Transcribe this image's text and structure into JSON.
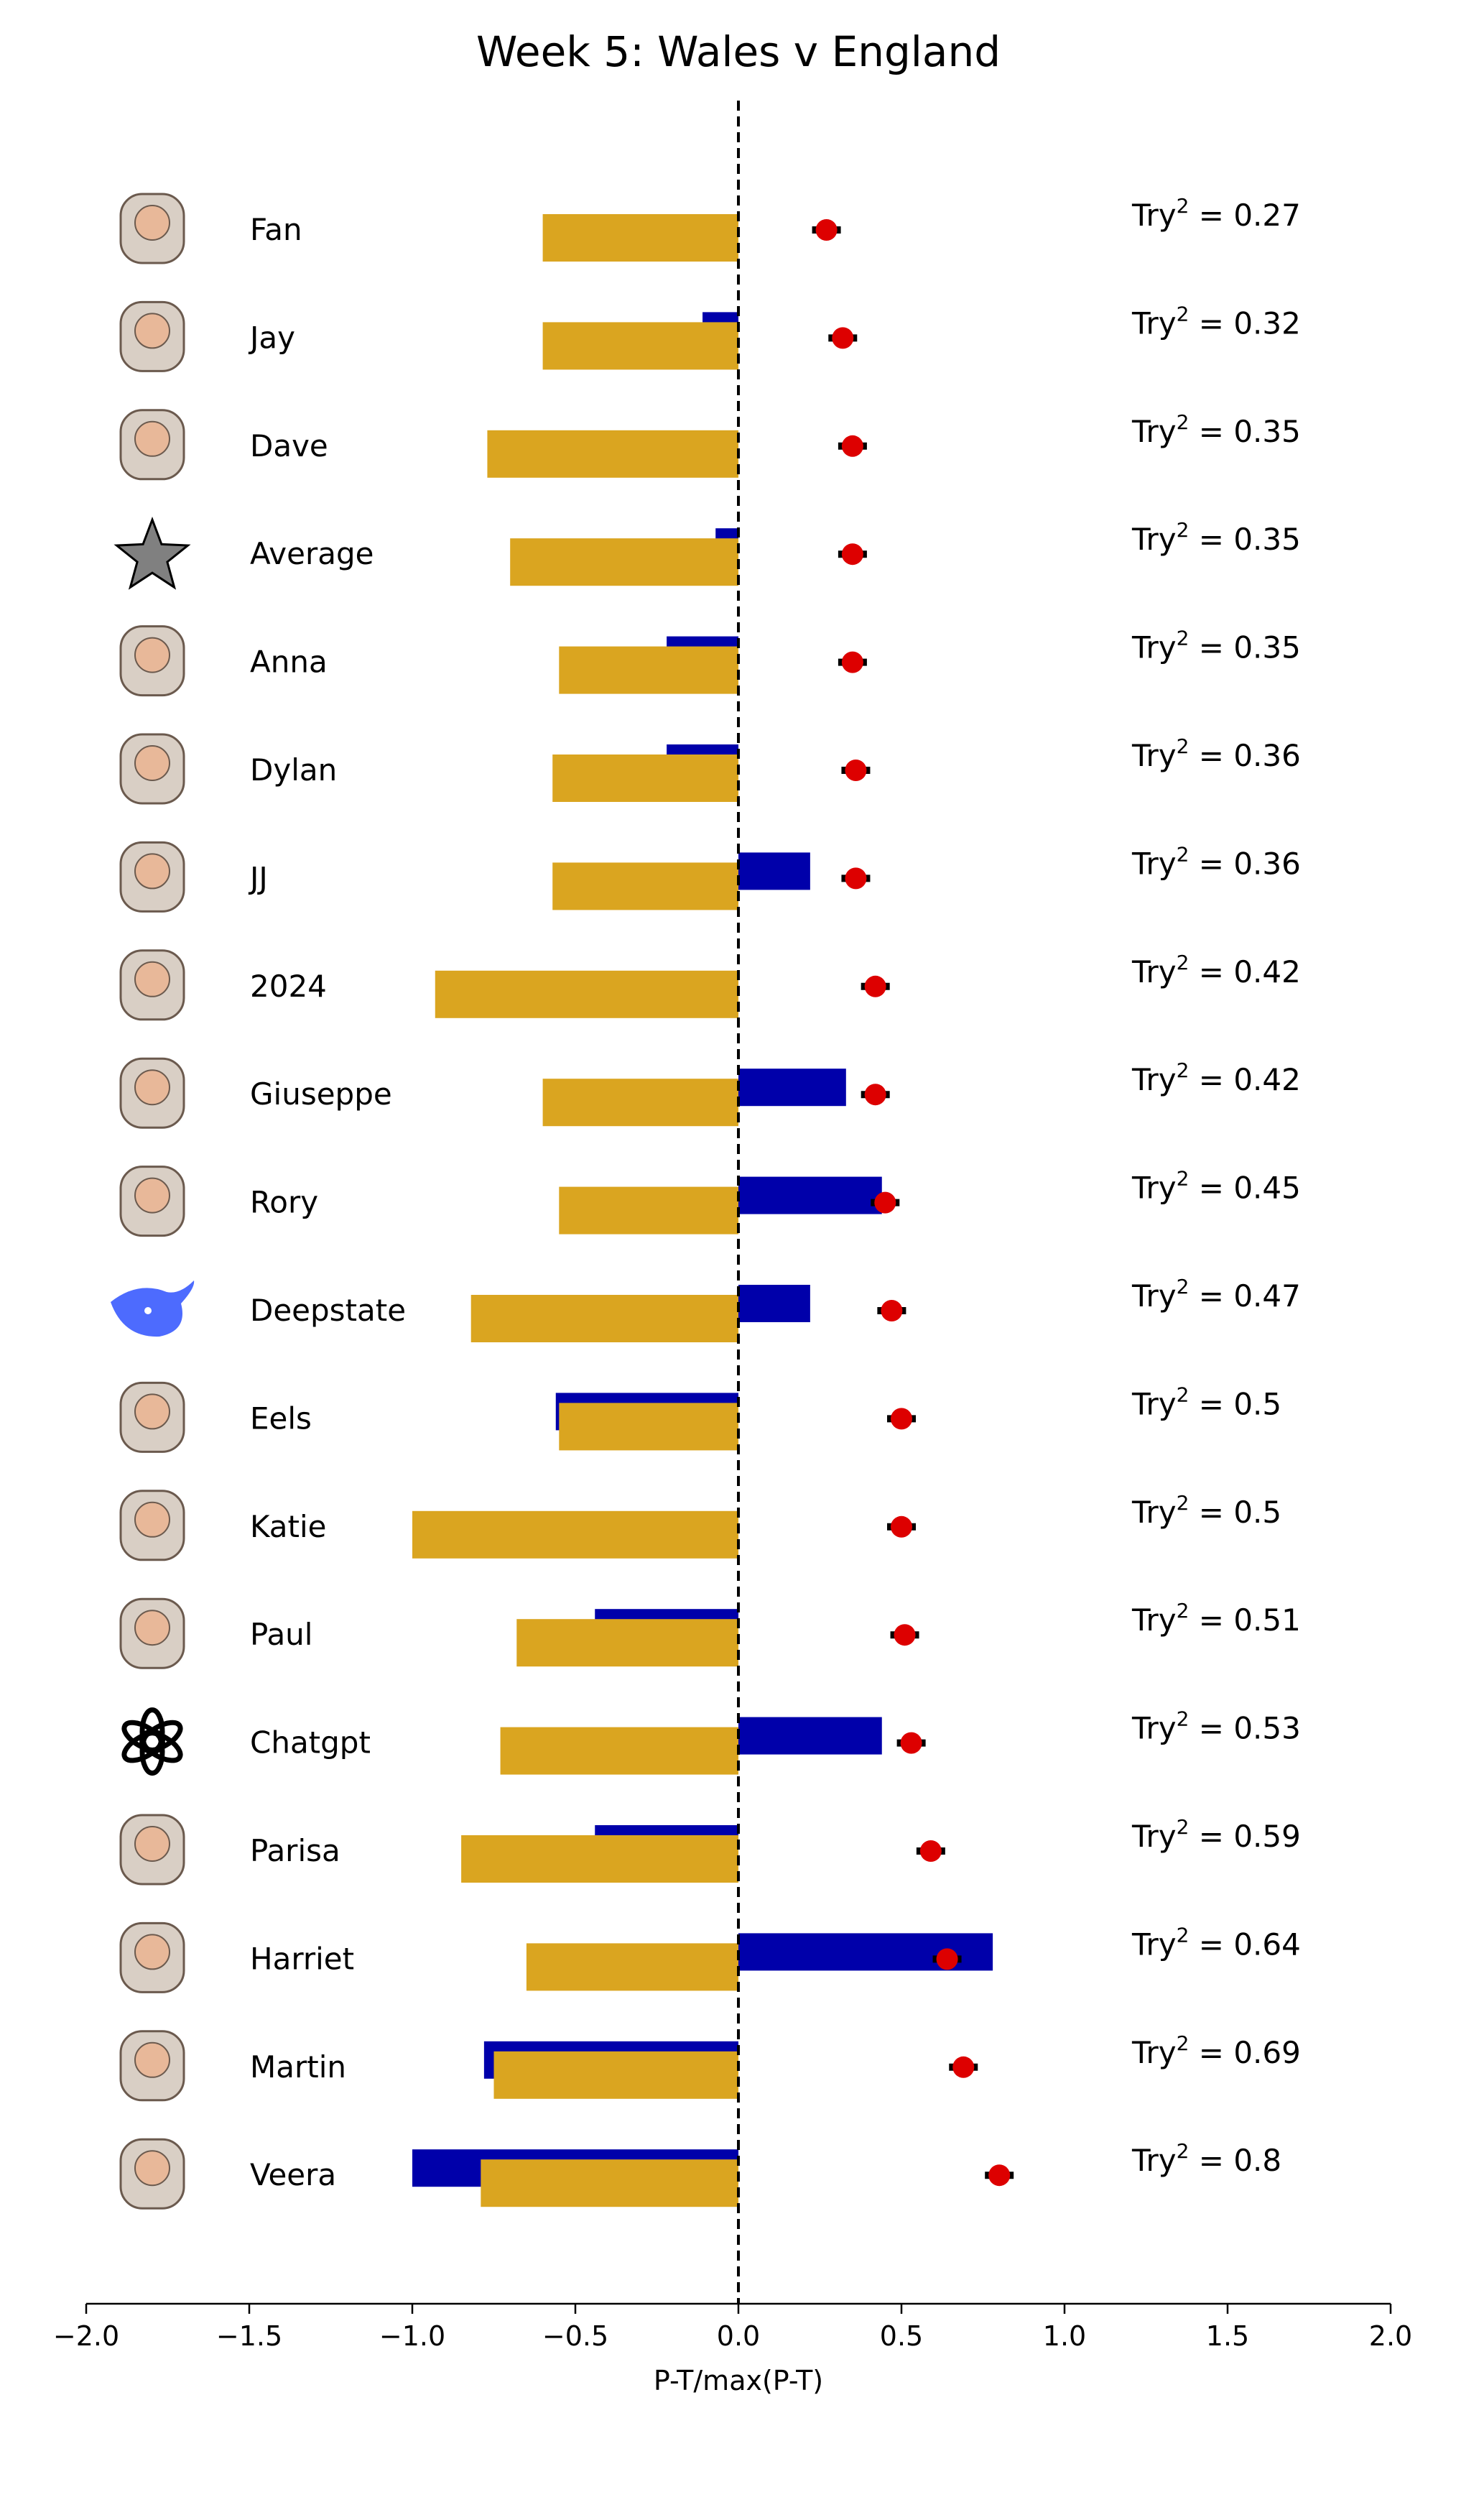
{
  "chart_data": {
    "type": "bar",
    "title": "Week 5: Wales v England",
    "xlabel": "P-T/max(P-T)",
    "ylabel": "",
    "xlim": [
      -2.0,
      2.0
    ],
    "xticks": [
      -2.0,
      -1.5,
      -1.0,
      -0.5,
      0.0,
      0.5,
      1.0,
      1.5,
      2.0
    ],
    "xtick_labels": [
      "−2.0",
      "−1.5",
      "−1.0",
      "−0.5",
      "0.0",
      "0.5",
      "1.0",
      "1.5",
      "2.0"
    ],
    "grid": false,
    "reference_line": {
      "x": 0,
      "style": "dashed",
      "color": "#000000"
    },
    "colors": {
      "blue": "#0000aa",
      "gold": "#daa520",
      "point": "#dd0000"
    },
    "score_label_prefix": "Try",
    "score_label_sup": "2",
    "score_label_sep": " = ",
    "categories": [
      "Fan",
      "Jay",
      "Dave",
      "Average",
      "Anna",
      "Dylan",
      "JJ",
      "2024",
      "Giuseppe",
      "Rory",
      "Deepstate",
      "Eels",
      "Katie",
      "Paul",
      "Chatgpt",
      "Parisa",
      "Harriet",
      "Martin",
      "Veera"
    ],
    "icons": [
      "astronaut-portrait-icon",
      "baby-face-icon",
      "microwave-icon",
      "star-icon",
      "elephant-icon",
      "potato-head-icon",
      "dog-selfie-icon",
      "rugby-ball-2024-icon",
      "bearded-man-icon",
      "truck-icon",
      "whale-logo-icon",
      "eel-icon",
      "pint-glass-icon",
      "fire-extinguisher-icon",
      "chatgpt-logo-icon",
      "dinosaur-icon",
      "woman-portrait-icon",
      "sheep-icon",
      "computer-tower-icon"
    ],
    "series": [
      {
        "values": [
          0.0,
          -0.11,
          0.0,
          -0.07,
          -0.22,
          -0.22,
          0.22,
          0.0,
          0.33,
          0.44,
          0.22,
          -0.56,
          0.0,
          -0.44,
          0.44,
          -0.44,
          0.78,
          -0.78,
          -1.0
        ]
      },
      {
        "values": [
          -0.6,
          -0.6,
          -0.77,
          -0.7,
          -0.55,
          -0.57,
          -0.57,
          -0.93,
          -0.6,
          -0.55,
          -0.82,
          -0.55,
          -1.0,
          -0.68,
          -0.73,
          -0.85,
          -0.65,
          -0.75,
          -0.79
        ]
      },
      {
        "values": [
          0.27,
          0.32,
          0.35,
          0.35,
          0.35,
          0.36,
          0.36,
          0.42,
          0.42,
          0.45,
          0.47,
          0.5,
          0.5,
          0.51,
          0.53,
          0.59,
          0.64,
          0.69,
          0.8
        ]
      }
    ],
    "score_labels": [
      "0.27",
      "0.32",
      "0.35",
      "0.35",
      "0.35",
      "0.36",
      "0.36",
      "0.42",
      "0.42",
      "0.45",
      "0.47",
      "0.5",
      "0.5",
      "0.51",
      "0.53",
      "0.59",
      "0.64",
      "0.69",
      "0.8"
    ]
  }
}
